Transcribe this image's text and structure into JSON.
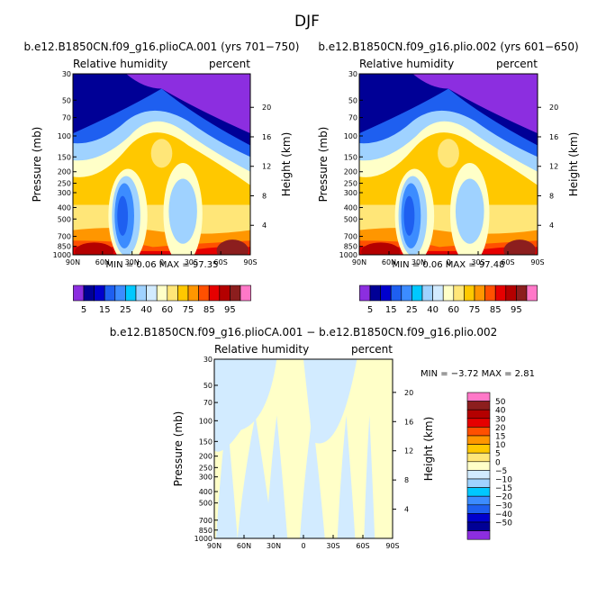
{
  "figure": {
    "title": "DJF"
  },
  "colors": {
    "rh_palette": [
      "#8c2ee0",
      "#000096",
      "#0000cd",
      "#1e5ff0",
      "#3c8cff",
      "#00c8ff",
      "#9fd2ff",
      "#d2ebff",
      "#ffffc8",
      "#ffe678",
      "#ffc800",
      "#ff9600",
      "#ff5000",
      "#e60000",
      "#b40000",
      "#8c1e1e",
      "#ff78c8"
    ],
    "diff_palette": [
      "#8c2ee0",
      "#000096",
      "#0000cd",
      "#1e5ff0",
      "#3c8cff",
      "#00c8ff",
      "#9fd2ff",
      "#d2ebff",
      "#ffffc8",
      "#ffe678",
      "#ffc800",
      "#ff9600",
      "#ff5000",
      "#e60000",
      "#b40000",
      "#8c1e1e",
      "#ff78c8"
    ]
  },
  "chart_data": [
    {
      "type": "heatmap",
      "title": "b.e12.B1850CN.f09_g16.plioCA.001 (yrs 701−750)",
      "left_label": "Relative humidity",
      "right_label": "percent",
      "ylabel": "Pressure (mb)",
      "y2label": "Height (km)",
      "x_ticks": [
        "90N",
        "60N",
        "30N",
        "0",
        "30S",
        "60S",
        "90S"
      ],
      "y_ticks": [
        "30",
        "50",
        "70",
        "100",
        "150",
        "200",
        "250",
        "300",
        "400",
        "500",
        "700",
        "850",
        "1000"
      ],
      "y2_ticks": [
        "20",
        "16",
        "12",
        "8",
        "4"
      ],
      "ylim": [
        1000,
        30
      ],
      "stats": "MIN =    0.06  MAX =   97.35",
      "colorbar_labels": [
        "5",
        "15",
        "25",
        "40",
        "60",
        "75",
        "85",
        "95"
      ]
    },
    {
      "type": "heatmap",
      "title": "b.e12.B1850CN.f09_g16.plio.002 (yrs 601−650)",
      "left_label": "Relative humidity",
      "right_label": "percent",
      "ylabel": "Pressure (mb)",
      "y2label": "Height (km)",
      "x_ticks": [
        "90N",
        "60N",
        "30N",
        "0",
        "30S",
        "60S",
        "90S"
      ],
      "y_ticks": [
        "30",
        "50",
        "70",
        "100",
        "150",
        "200",
        "250",
        "300",
        "400",
        "500",
        "700",
        "850",
        "1000"
      ],
      "y2_ticks": [
        "20",
        "16",
        "12",
        "8",
        "4"
      ],
      "ylim": [
        1000,
        30
      ],
      "stats": "MIN =    0.06  MAX =   97.48",
      "colorbar_labels": [
        "5",
        "15",
        "25",
        "40",
        "60",
        "75",
        "85",
        "95"
      ]
    },
    {
      "type": "heatmap",
      "title": "b.e12.B1850CN.f09_g16.plioCA.001 − b.e12.B1850CN.f09_g16.plio.002",
      "left_label": "Relative humidity",
      "right_label": "percent",
      "ylabel": "Pressure (mb)",
      "y2label": "Height (km)",
      "x_ticks": [
        "90N",
        "60N",
        "30N",
        "0",
        "30S",
        "60S",
        "90S"
      ],
      "y_ticks": [
        "30",
        "50",
        "70",
        "100",
        "150",
        "200",
        "250",
        "300",
        "400",
        "500",
        "700",
        "850",
        "1000"
      ],
      "y2_ticks": [
        "20",
        "16",
        "12",
        "8",
        "4"
      ],
      "ylim": [
        1000,
        30
      ],
      "stats": "MIN =   −3.72  MAX =    2.81",
      "colorbar_labels": [
        "50",
        "40",
        "30",
        "20",
        "15",
        "10",
        "5",
        "0",
        "−5",
        "−10",
        "−15",
        "−20",
        "−30",
        "−40",
        "−50"
      ]
    }
  ]
}
